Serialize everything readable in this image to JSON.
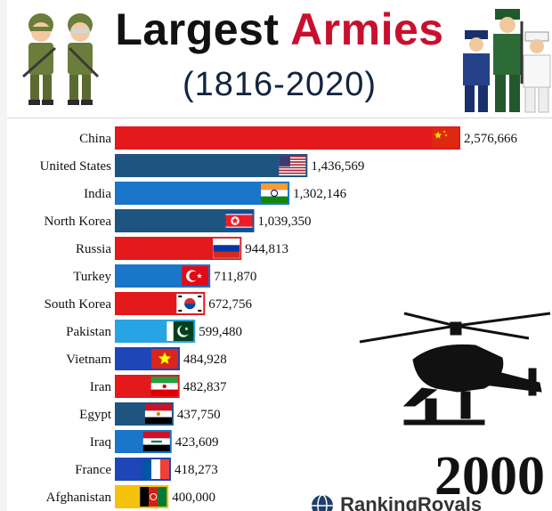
{
  "header": {
    "title_part1": "Largest",
    "title_part2": "Armies",
    "subtitle": "(1816-2020)"
  },
  "year": "2000",
  "brand": "RankingRoyals",
  "colors": {
    "red": "#e3191c",
    "navy": "#1d5580",
    "blue": "#1a76c8",
    "lightblue": "#28a4e4",
    "royal": "#1f46b8",
    "gold": "#f4c20d"
  },
  "chart_data": {
    "type": "bar",
    "orientation": "horizontal",
    "title": "Largest Armies",
    "subtitle": "(1816-2020)",
    "xlim": [
      0,
      2576666
    ],
    "grid": false,
    "legend": "none",
    "categories": [
      "China",
      "United States",
      "India",
      "North Korea",
      "Russia",
      "Turkey",
      "South Korea",
      "Pakistan",
      "Vietnam",
      "Iran",
      "Egypt",
      "Iraq",
      "France",
      "Afghanistan"
    ],
    "values": [
      2576666,
      1436569,
      1302146,
      1039350,
      944813,
      711870,
      672756,
      599480,
      484928,
      482837,
      437750,
      423609,
      418273,
      400000
    ],
    "value_labels": [
      "2,576,666",
      "1,436,569",
      "1,302,146",
      "1,039,350",
      "944,813",
      "711,870",
      "672,756",
      "599,480",
      "484,928",
      "482,837",
      "437,750",
      "423,609",
      "418,273",
      "400,000"
    ],
    "bar_colors": [
      "#e3191c",
      "#1d5580",
      "#1a76c8",
      "#1d5580",
      "#e3191c",
      "#1a76c8",
      "#e3191c",
      "#28a4e4",
      "#1f46b8",
      "#e3191c",
      "#1d5580",
      "#1a76c8",
      "#1f46b8",
      "#f4c20d"
    ],
    "flags": [
      "china-flag-icon",
      "usa-flag-icon",
      "india-flag-icon",
      "north-korea-flag-icon",
      "russia-flag-icon",
      "turkey-flag-icon",
      "south-korea-flag-icon",
      "pakistan-flag-icon",
      "vietnam-flag-icon",
      "iran-flag-icon",
      "egypt-flag-icon",
      "iraq-flag-icon",
      "france-flag-icon",
      "afghanistan-flag-icon"
    ]
  }
}
